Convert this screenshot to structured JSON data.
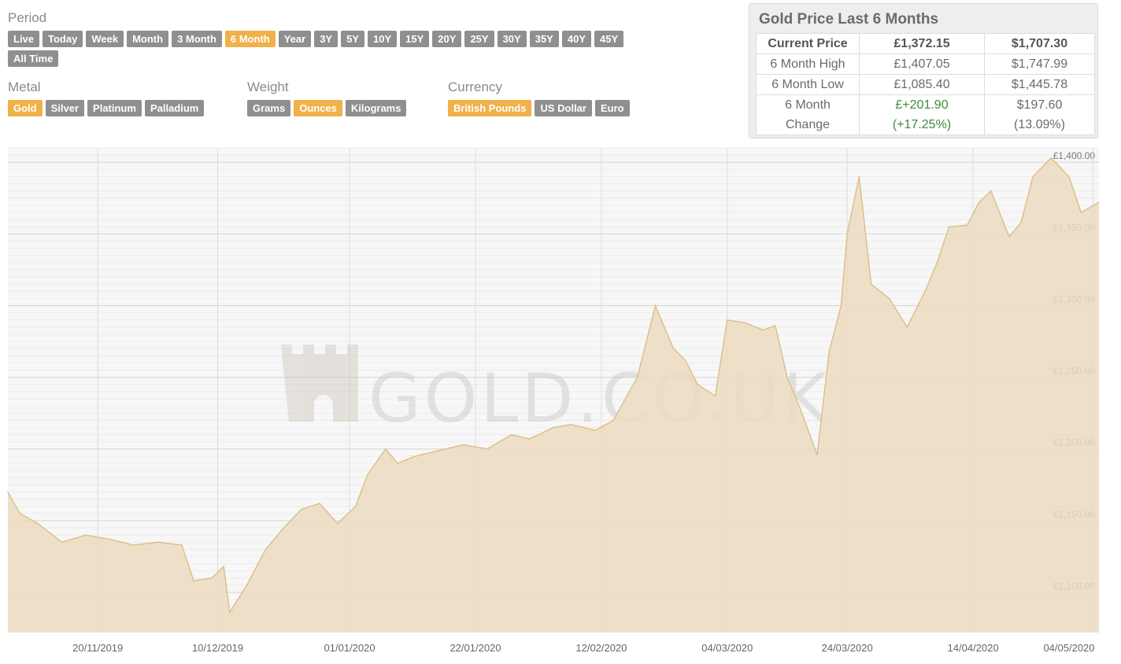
{
  "controls": {
    "period_label": "Period",
    "period_options": [
      "Live",
      "Today",
      "Week",
      "Month",
      "3 Month",
      "6 Month",
      "Year",
      "3Y",
      "5Y",
      "10Y",
      "15Y",
      "20Y",
      "25Y",
      "30Y",
      "35Y",
      "40Y",
      "45Y",
      "All Time"
    ],
    "period_selected": "6 Month",
    "metal_label": "Metal",
    "metal_options": [
      "Gold",
      "Silver",
      "Platinum",
      "Palladium"
    ],
    "metal_selected": "Gold",
    "weight_label": "Weight",
    "weight_options": [
      "Grams",
      "Ounces",
      "Kilograms"
    ],
    "weight_selected": "Ounces",
    "currency_label": "Currency",
    "currency_options": [
      "British Pounds",
      "US Dollar",
      "Euro"
    ],
    "currency_selected": "British Pounds"
  },
  "summary": {
    "title": "Gold Price Last 6 Months",
    "rows": [
      {
        "label": "Current Price",
        "gbp": "£1,372.15",
        "usd": "$1,707.30"
      },
      {
        "label": "6 Month High",
        "gbp": "£1,407.05",
        "usd": "$1,747.99"
      },
      {
        "label": "6 Month Low",
        "gbp": "£1,085.40",
        "usd": "$1,445.78"
      },
      {
        "label": "6 Month Change",
        "gbp": "£+201.90 (+17.25%)",
        "usd": "$197.60 (13.09%)"
      }
    ],
    "change_label_lines": [
      "6 Month",
      "Change"
    ],
    "change_gbp_lines": [
      "£+201.90",
      "(+17.25%)"
    ],
    "change_usd_lines": [
      "$197.60",
      "(13.09%)"
    ]
  },
  "watermark": "GOLD.CO.UK",
  "colors": {
    "accent": "#f0b14a",
    "button": "#8f8f8f",
    "area_fill": "#ecdcbf",
    "area_line": "#dcc08c",
    "gain": "#3f8a3f"
  },
  "chart_data": {
    "type": "area",
    "ylim": [
      1072,
      1410
    ],
    "y_ticks": [
      "£1,100.00",
      "£1,150.00",
      "£1,200.00",
      "£1,250.00",
      "£1,300.00",
      "£1,350.00",
      "£1,400.00"
    ],
    "x_ticks": [
      "20/11/2019",
      "10/12/2019",
      "01/01/2020",
      "22/01/2020",
      "12/02/2020",
      "04/03/2020",
      "24/03/2020",
      "14/04/2020",
      "04/05/2020"
    ],
    "x": [
      "2019-11-05",
      "2019-11-07",
      "2019-11-10",
      "2019-11-14",
      "2019-11-18",
      "2019-11-22",
      "2019-11-26",
      "2019-11-30",
      "2019-12-04",
      "2019-12-06",
      "2019-12-09",
      "2019-12-11",
      "2019-12-12",
      "2019-12-15",
      "2019-12-18",
      "2019-12-21",
      "2019-12-24",
      "2019-12-27",
      "2019-12-30",
      "2020-01-02",
      "2020-01-04",
      "2020-01-07",
      "2020-01-09",
      "2020-01-12",
      "2020-01-15",
      "2020-01-20",
      "2020-01-24",
      "2020-01-28",
      "2020-01-31",
      "2020-02-04",
      "2020-02-07",
      "2020-02-11",
      "2020-02-14",
      "2020-02-18",
      "2020-02-21",
      "2020-02-24",
      "2020-02-26",
      "2020-02-28",
      "2020-03-02",
      "2020-03-04",
      "2020-03-07",
      "2020-03-10",
      "2020-03-12",
      "2020-03-14",
      "2020-03-16",
      "2020-03-19",
      "2020-03-21",
      "2020-03-23",
      "2020-03-24",
      "2020-03-26",
      "2020-03-28",
      "2020-03-31",
      "2020-04-03",
      "2020-04-06",
      "2020-04-08",
      "2020-04-10",
      "2020-04-13",
      "2020-04-15",
      "2020-04-17",
      "2020-04-20",
      "2020-04-22",
      "2020-04-24",
      "2020-04-27",
      "2020-04-30",
      "2020-05-02",
      "2020-05-05"
    ],
    "values": [
      1170,
      1155,
      1148,
      1135,
      1140,
      1137,
      1133,
      1135,
      1133,
      1108,
      1110,
      1118,
      1086,
      1106,
      1130,
      1145,
      1158,
      1162,
      1148,
      1160,
      1182,
      1200,
      1190,
      1195,
      1198,
      1203,
      1200,
      1210,
      1207,
      1215,
      1217,
      1213,
      1220,
      1250,
      1300,
      1270,
      1262,
      1245,
      1237,
      1290,
      1288,
      1283,
      1286,
      1250,
      1230,
      1196,
      1268,
      1300,
      1350,
      1390,
      1315,
      1305,
      1285,
      1310,
      1330,
      1355,
      1356,
      1372,
      1380,
      1348,
      1358,
      1390,
      1403,
      1390,
      1365,
      1372
    ]
  }
}
